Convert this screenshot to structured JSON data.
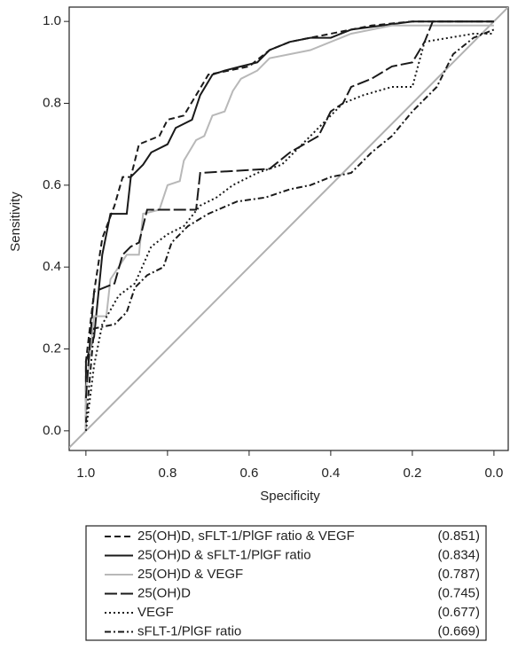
{
  "chart_data": {
    "type": "line",
    "x_label": "Specificity",
    "y_label": "Sensitivity",
    "xlim": [
      1.041,
      -0.035
    ],
    "ylim": [
      -0.048,
      1.035
    ],
    "xticks": [
      {
        "value": 1,
        "label": "1.0"
      },
      0.8,
      0.6,
      0.4,
      0.2,
      {
        "value": 0,
        "label": "0.0"
      }
    ],
    "yticks": [
      {
        "value": 0,
        "label": "0.0"
      },
      0.2,
      0.4,
      0.6,
      0.8,
      {
        "value": 1,
        "label": "1.0"
      }
    ],
    "reference_line": true,
    "reference_color": "#b0b0b0",
    "series": [
      {
        "name": "25(OH)D, sFLT-1/PlGF ratio & VEGF",
        "legend_value": "(0.851)",
        "color": "#1a1a1a",
        "dash": "7,4",
        "x": [
          1.0,
          1.0,
          0.98,
          0.96,
          0.93,
          0.91,
          0.89,
          0.87,
          0.82,
          0.8,
          0.76,
          0.73,
          0.7,
          0.65,
          0.6,
          0.55,
          0.5,
          0.4,
          0.3,
          0.2,
          0.0
        ],
        "values": [
          0.0,
          0.17,
          0.34,
          0.47,
          0.55,
          0.62,
          0.62,
          0.7,
          0.72,
          0.76,
          0.77,
          0.82,
          0.87,
          0.88,
          0.89,
          0.93,
          0.95,
          0.97,
          0.99,
          1.0,
          1.0
        ]
      },
      {
        "name": "25(OH)D & sFLT-1/PlGF ratio",
        "legend_value": "(0.834)",
        "color": "#1a1a1a",
        "dash": "none",
        "x": [
          1.0,
          1.0,
          0.98,
          0.96,
          0.94,
          0.9,
          0.89,
          0.86,
          0.84,
          0.8,
          0.78,
          0.74,
          0.72,
          0.69,
          0.66,
          0.62,
          0.58,
          0.55,
          0.5,
          0.45,
          0.4,
          0.35,
          0.2,
          0.0
        ],
        "values": [
          0.0,
          0.17,
          0.23,
          0.43,
          0.53,
          0.53,
          0.62,
          0.65,
          0.68,
          0.7,
          0.74,
          0.76,
          0.82,
          0.87,
          0.88,
          0.89,
          0.9,
          0.93,
          0.95,
          0.96,
          0.96,
          0.98,
          1.0,
          1.0
        ]
      },
      {
        "name": "25(OH)D & VEGF",
        "legend_value": "(0.787)",
        "color": "#b8b8b8",
        "dash": "none",
        "x": [
          1.0,
          1.0,
          0.98,
          0.95,
          0.94,
          0.92,
          0.9,
          0.87,
          0.86,
          0.82,
          0.8,
          0.77,
          0.76,
          0.73,
          0.71,
          0.69,
          0.66,
          0.64,
          0.62,
          0.58,
          0.55,
          0.45,
          0.35,
          0.25,
          0.0
        ],
        "values": [
          0.0,
          0.1,
          0.28,
          0.28,
          0.37,
          0.4,
          0.43,
          0.43,
          0.53,
          0.54,
          0.6,
          0.61,
          0.66,
          0.71,
          0.72,
          0.77,
          0.78,
          0.83,
          0.86,
          0.88,
          0.91,
          0.93,
          0.97,
          0.99,
          0.99
        ]
      },
      {
        "name": "25(OH)D",
        "legend_value": "(0.745)",
        "color": "#1a1a1a",
        "dash": "14,4",
        "x": [
          1.0,
          0.99,
          0.98,
          0.93,
          0.91,
          0.89,
          0.87,
          0.85,
          0.73,
          0.72,
          0.55,
          0.5,
          0.43,
          0.4,
          0.37,
          0.35,
          0.3,
          0.25,
          0.2,
          0.17,
          0.15,
          0.0
        ],
        "values": [
          0.08,
          0.22,
          0.34,
          0.36,
          0.43,
          0.45,
          0.46,
          0.54,
          0.54,
          0.63,
          0.64,
          0.68,
          0.72,
          0.78,
          0.8,
          0.84,
          0.86,
          0.89,
          0.9,
          0.95,
          1.0,
          1.0
        ]
      },
      {
        "name": "VEGF",
        "legend_value": "(0.677)",
        "color": "#1a1a1a",
        "dash": "2,3",
        "x": [
          1.0,
          0.98,
          0.96,
          0.92,
          0.88,
          0.84,
          0.8,
          0.76,
          0.72,
          0.68,
          0.64,
          0.58,
          0.52,
          0.47,
          0.43,
          0.37,
          0.32,
          0.25,
          0.2,
          0.17,
          0.05,
          0.0
        ],
        "values": [
          0.0,
          0.16,
          0.26,
          0.33,
          0.36,
          0.45,
          0.48,
          0.5,
          0.55,
          0.57,
          0.6,
          0.63,
          0.65,
          0.7,
          0.74,
          0.8,
          0.82,
          0.84,
          0.84,
          0.95,
          0.97,
          0.97
        ]
      },
      {
        "name": "sFLT-1/PlGF ratio",
        "legend_value": "(0.669)",
        "color": "#1a1a1a",
        "dash": "7,3,2,3",
        "x": [
          1.0,
          0.98,
          0.93,
          0.9,
          0.88,
          0.85,
          0.81,
          0.79,
          0.75,
          0.7,
          0.63,
          0.56,
          0.5,
          0.45,
          0.4,
          0.35,
          0.3,
          0.25,
          0.2,
          0.14,
          0.1,
          0.05,
          0.0
        ],
        "values": [
          0.02,
          0.25,
          0.26,
          0.29,
          0.35,
          0.38,
          0.4,
          0.46,
          0.5,
          0.53,
          0.56,
          0.57,
          0.59,
          0.6,
          0.62,
          0.63,
          0.68,
          0.72,
          0.78,
          0.84,
          0.92,
          0.96,
          0.98
        ]
      }
    ]
  }
}
